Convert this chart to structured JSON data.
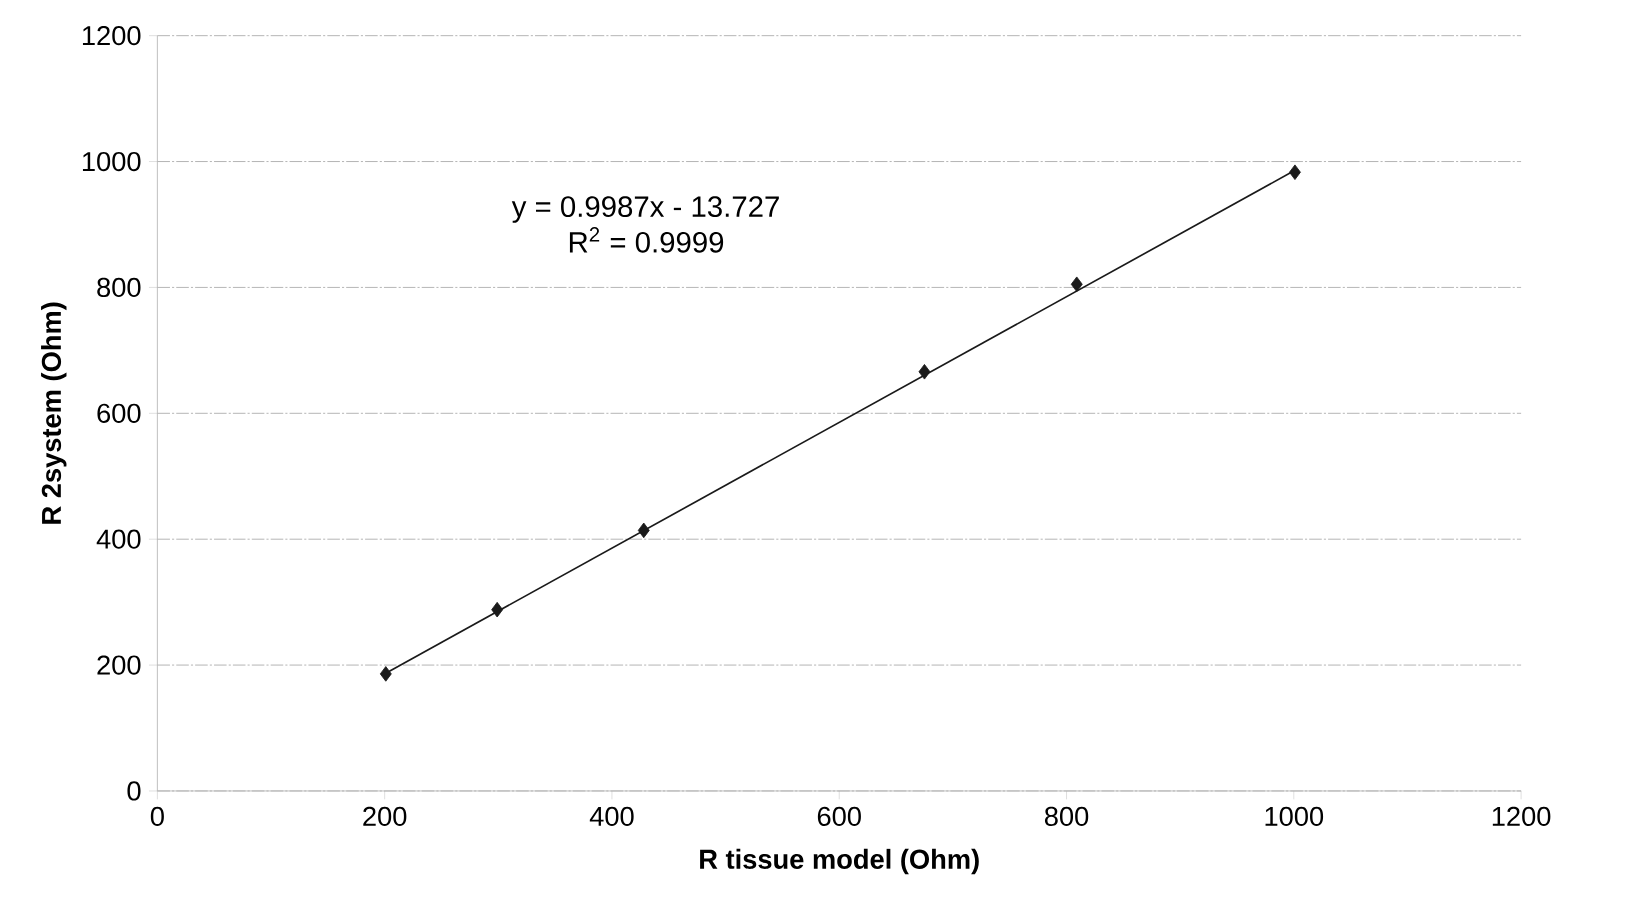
{
  "chart_data": {
    "type": "scatter",
    "xlabel": "R tissue model (Ohm)",
    "ylabel": "R 2system (Ohm)",
    "xlim": [
      0,
      1200
    ],
    "xticks": [
      0,
      200,
      400,
      600,
      800,
      1000,
      1200
    ],
    "ylim": [
      0,
      1200
    ],
    "yticks": [
      0,
      200,
      400,
      600,
      800,
      1000,
      1200
    ],
    "grid": "y",
    "marker": "diamond",
    "annotations": [
      "y = 0.9987x - 13.727",
      "R$^{2}$ = 0.9999"
    ],
    "series": [
      {
        "color": "#1a1a1a",
        "x": [
          201,
          299,
          428,
          675,
          809,
          1001
        ],
        "values": [
          186,
          288,
          414,
          666,
          805,
          983
        ]
      },
      {
        "type": "line",
        "color": "#1a1a1a",
        "x": [
          201,
          1001
        ],
        "values": [
          187,
          986
        ],
        "marker": "none"
      }
    ]
  }
}
